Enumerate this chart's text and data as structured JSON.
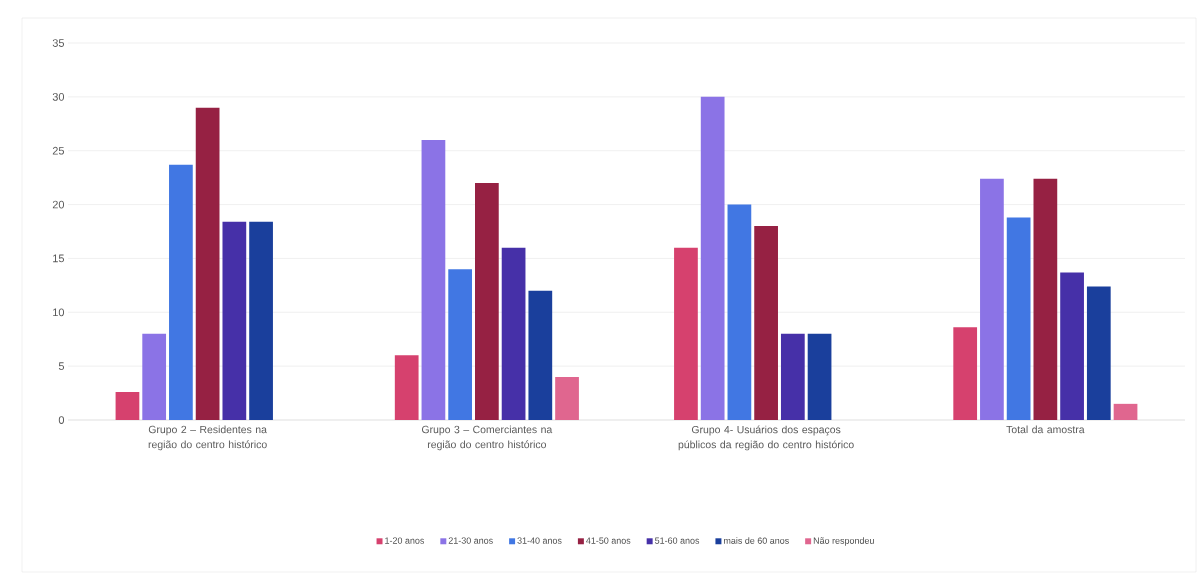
{
  "chart_data": {
    "type": "bar",
    "categories": [
      "Grupo 2 – Residentes na região do centro histórico",
      "Grupo 3 – Comerciantes na região do centro histórico",
      "Grupo 4- Usuários dos espaços públicos da região do centro histórico",
      "Total da amostra"
    ],
    "series": [
      {
        "name": "1-20 anos",
        "color": "#d6416e",
        "values": [
          2.6,
          6,
          16,
          8.6
        ]
      },
      {
        "name": "21-30 anos",
        "color": "#8b73e6",
        "values": [
          8,
          26,
          30,
          22.4
        ]
      },
      {
        "name": "31-40 anos",
        "color": "#4177e3",
        "values": [
          23.7,
          14,
          20,
          18.8
        ]
      },
      {
        "name": "41-50 anos",
        "color": "#962143",
        "values": [
          29,
          22,
          18,
          22.4
        ]
      },
      {
        "name": "51-60 anos",
        "color": "#4630a8",
        "values": [
          18.4,
          16,
          8,
          13.7
        ]
      },
      {
        "name": "mais de 60 anos",
        "color": "#1a3f9c",
        "values": [
          18.4,
          12,
          8,
          12.4
        ]
      },
      {
        "name": "Não respondeu",
        "color": "#e0668f",
        "values": [
          null,
          4,
          null,
          1.5
        ]
      }
    ],
    "ylim": [
      0,
      35
    ],
    "yticks": [
      0,
      5,
      10,
      15,
      20,
      25,
      30,
      35
    ],
    "grid": "y",
    "legend": "bottom"
  }
}
